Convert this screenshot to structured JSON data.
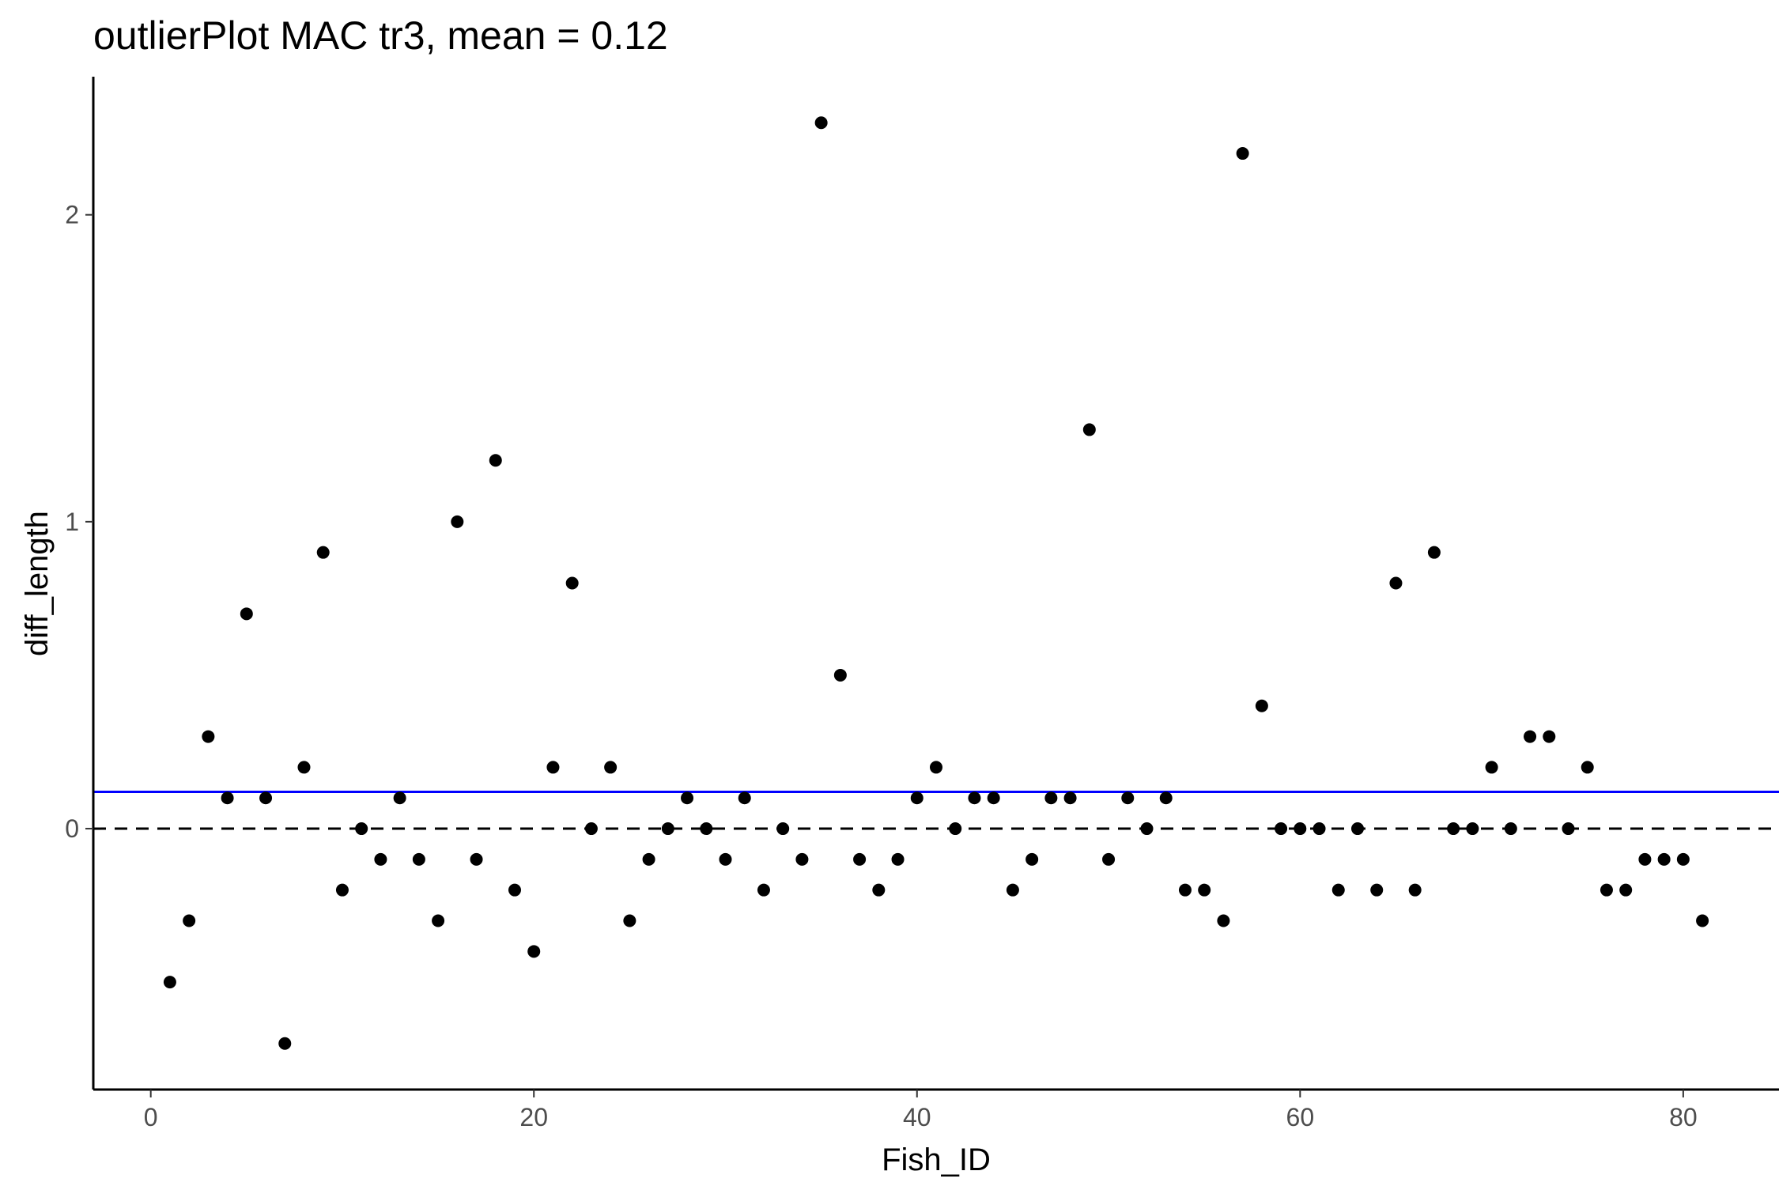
{
  "chart_data": {
    "type": "scatter",
    "title": "outlierPlot MAC tr3, mean = 0.12",
    "xlabel": "Fish_ID",
    "ylabel": "diff_length",
    "xlim": [
      -3,
      85
    ],
    "ylim": [
      -0.85,
      2.45
    ],
    "xticks": [
      0,
      20,
      40,
      60,
      80
    ],
    "yticks": [
      0,
      1,
      2
    ],
    "grid": false,
    "legend": "none",
    "mean_line": {
      "value": 0.12,
      "color": "#0000ff",
      "style": "solid"
    },
    "zero_line": {
      "value": 0,
      "color": "#000000",
      "style": "dashed"
    },
    "point_color": "#000000",
    "series": [
      {
        "x": [
          1,
          2,
          3,
          4,
          5,
          6,
          7,
          8,
          9,
          10,
          11,
          12,
          13,
          14,
          15,
          16,
          17,
          18,
          19,
          20,
          21,
          22,
          23,
          24,
          25,
          26,
          27,
          28,
          29,
          30,
          31,
          32,
          33,
          34,
          35,
          36,
          37,
          38,
          39,
          40,
          41,
          42,
          43,
          44,
          45,
          46,
          47,
          48,
          49,
          50,
          51,
          52,
          53,
          54,
          55,
          56,
          57,
          58,
          59,
          60,
          61,
          62,
          63,
          64,
          65,
          66,
          67,
          68,
          69,
          70,
          71,
          72,
          73,
          74,
          75,
          76,
          77,
          78,
          79,
          80,
          81
        ],
        "y": [
          -0.5,
          -0.3,
          0.3,
          0.1,
          0.7,
          0.1,
          -0.7,
          0.2,
          0.9,
          -0.2,
          0,
          -0.1,
          0.1,
          -0.1,
          -0.3,
          1,
          -0.1,
          1.2,
          -0.2,
          -0.4,
          0.2,
          0.8,
          0,
          0.2,
          -0.3,
          -0.1,
          0,
          0.1,
          0,
          -0.1,
          0.1,
          -0.2,
          0,
          -0.1,
          2.3,
          0.5,
          -0.1,
          -0.2,
          -0.1,
          0.1,
          0.2,
          0,
          0.1,
          0.1,
          -0.2,
          -0.1,
          0.1,
          0.1,
          1.3,
          -0.1,
          0.1,
          0,
          0.1,
          -0.2,
          -0.2,
          -0.3,
          2.2,
          0.4,
          0,
          0,
          0,
          -0.2,
          0,
          -0.2,
          0.8,
          -0.2,
          0.9,
          0,
          0,
          0.2,
          0,
          0.3,
          0.3,
          0,
          0.2,
          -0.2,
          -0.2,
          -0.1,
          -0.1,
          -0.1,
          -0.3
        ]
      }
    ]
  }
}
